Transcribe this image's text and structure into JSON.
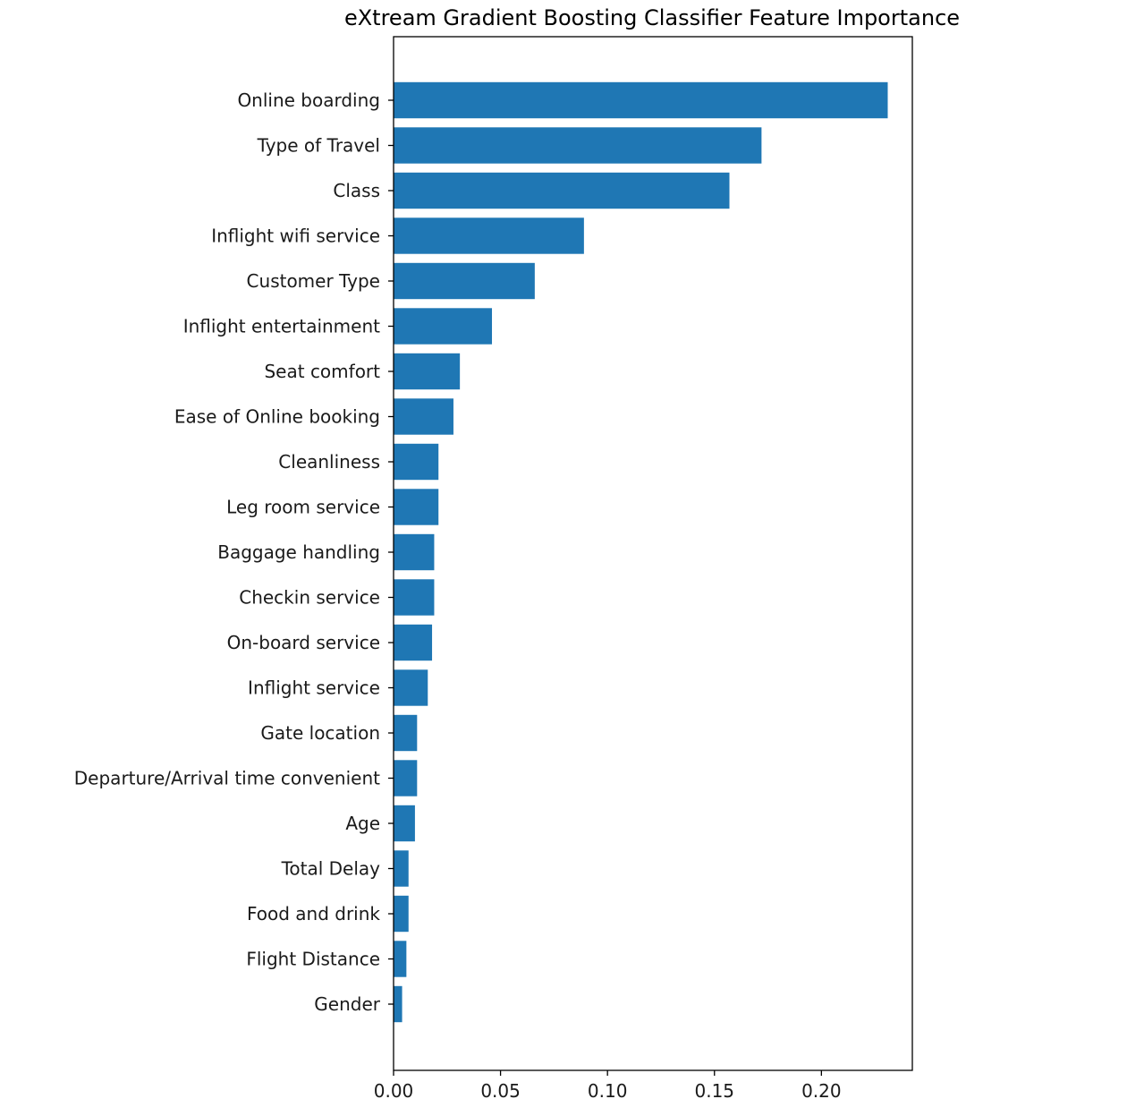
{
  "chart_data": {
    "type": "bar",
    "orientation": "horizontal",
    "title": "eXtream Gradient Boosting Classifier Feature Importance",
    "xlabel": "",
    "ylabel": "",
    "categories": [
      "Online boarding",
      "Type of Travel",
      "Class",
      "Inflight wifi service",
      "Customer Type",
      "Inflight entertainment",
      "Seat comfort",
      "Ease of Online booking",
      "Cleanliness",
      "Leg room service",
      "Baggage handling",
      "Checkin service",
      "On-board service",
      "Inflight service",
      "Gate location",
      "Departure/Arrival time convenient",
      "Age",
      "Total Delay",
      "Food and drink",
      "Flight Distance",
      "Gender"
    ],
    "values": [
      0.231,
      0.172,
      0.157,
      0.089,
      0.066,
      0.046,
      0.031,
      0.028,
      0.021,
      0.021,
      0.019,
      0.019,
      0.018,
      0.016,
      0.011,
      0.011,
      0.01,
      0.007,
      0.007,
      0.006,
      0.004
    ],
    "xlim": [
      0.0,
      0.2425
    ],
    "xticks": [
      0.0,
      0.05,
      0.1,
      0.15,
      0.2
    ],
    "xtick_labels": [
      "0.00",
      "0.05",
      "0.10",
      "0.15",
      "0.20"
    ],
    "grid": false,
    "bar_color": "#1f77b4"
  }
}
